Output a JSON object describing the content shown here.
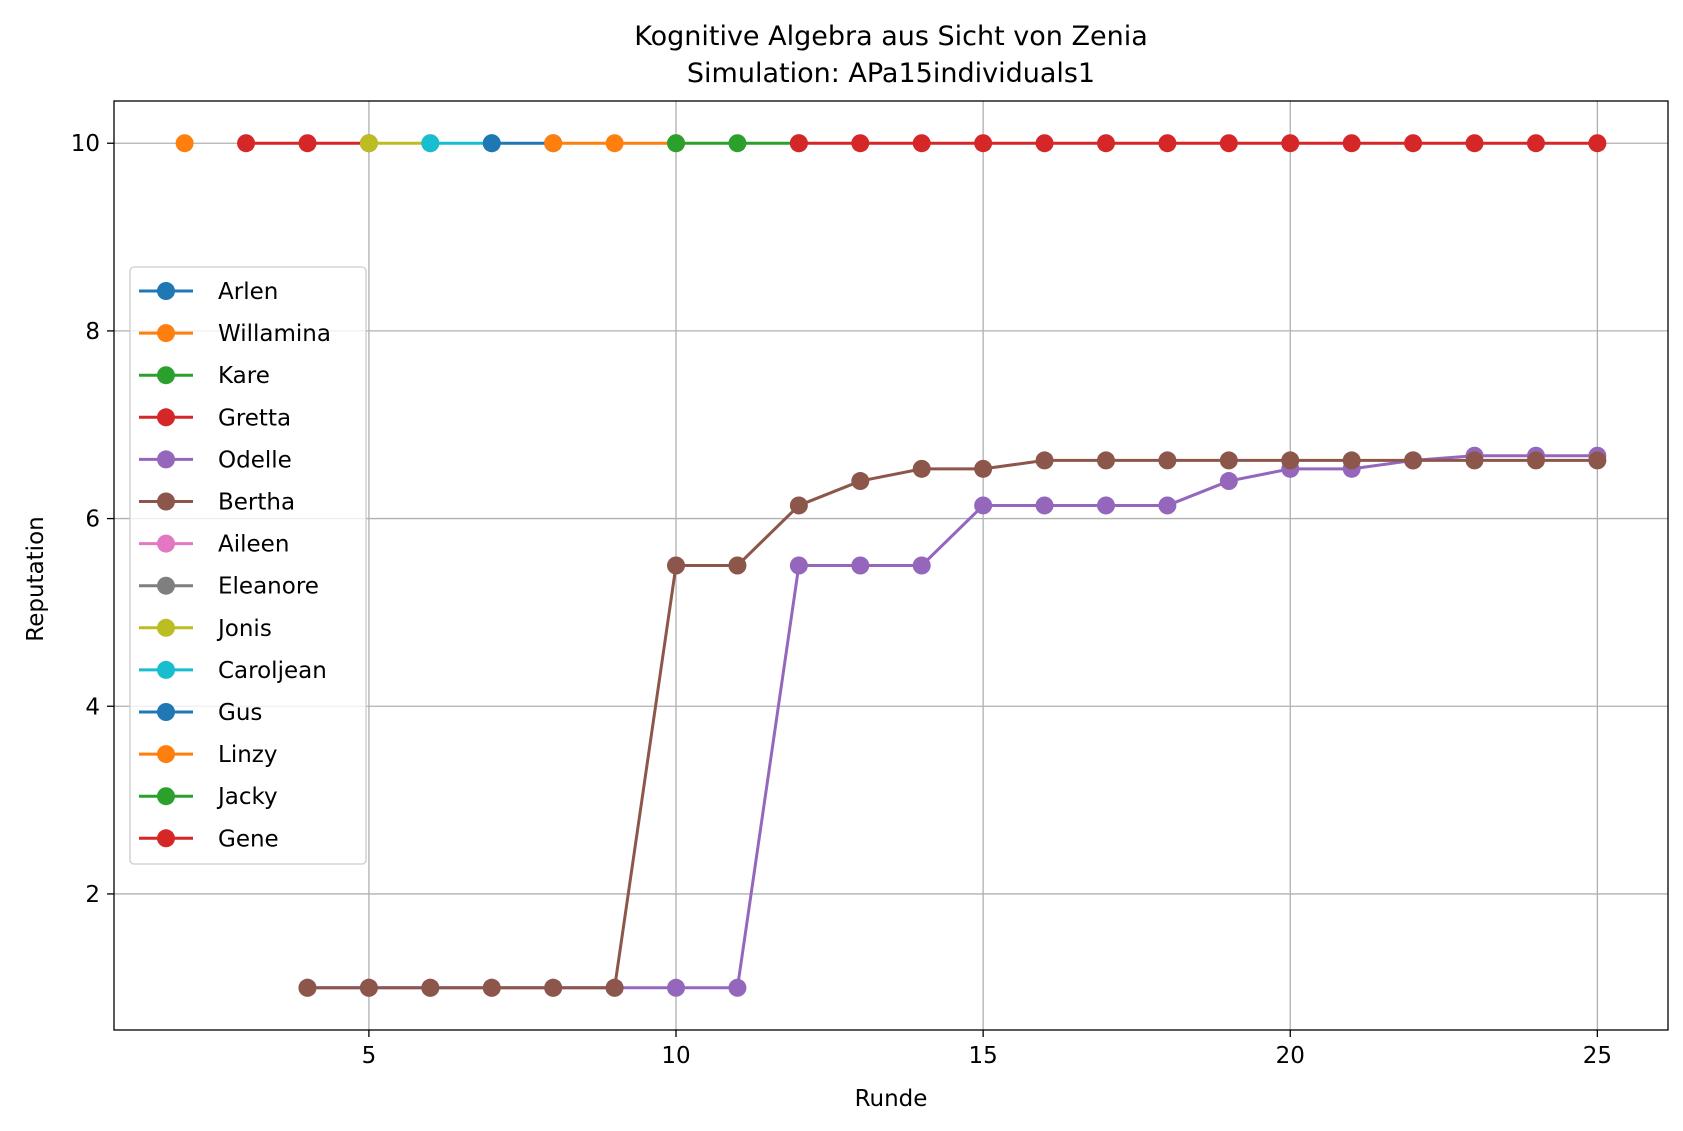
{
  "chart_data": {
    "type": "line",
    "title": "Kognitive Algebra aus Sicht von Zenia",
    "subtitle": "Simulation: APa15individuals1",
    "xlabel": "Runde",
    "ylabel": "Reputation",
    "xlim": [
      0.85,
      26.15
    ],
    "ylim": [
      0.55,
      10.45
    ],
    "xticks": [
      5,
      10,
      15,
      20,
      25
    ],
    "yticks": [
      2,
      4,
      6,
      8,
      10
    ],
    "grid": true,
    "legend_position": "center-left",
    "series": [
      {
        "name": "Arlen",
        "color": "#1f77b4",
        "x": [],
        "y": []
      },
      {
        "name": "Willamina",
        "color": "#ff7f0e",
        "x": [
          2
        ],
        "y": [
          10
        ]
      },
      {
        "name": "Kare",
        "color": "#2ca02c",
        "x": [],
        "y": []
      },
      {
        "name": "Gretta",
        "color": "#d62728",
        "x": [
          3,
          4,
          5
        ],
        "y": [
          10,
          10,
          10
        ]
      },
      {
        "name": "Odelle",
        "color": "#9467bd",
        "x": [
          4,
          5,
          6,
          7,
          8,
          9,
          10,
          11,
          12,
          13,
          14,
          15,
          16,
          17,
          18,
          19,
          20,
          21,
          22,
          23,
          24,
          25
        ],
        "y": [
          1,
          1,
          1,
          1,
          1,
          1,
          1,
          1,
          5.5,
          5.5,
          5.5,
          6.14,
          6.14,
          6.14,
          6.14,
          6.4,
          6.53,
          6.53,
          6.62,
          6.67,
          6.67,
          6.67
        ]
      },
      {
        "name": "Bertha",
        "color": "#8c564b",
        "x": [
          4,
          5,
          6,
          7,
          8,
          9,
          10,
          11,
          12,
          13,
          14,
          15,
          16,
          17,
          18,
          19,
          20,
          21,
          22,
          23,
          24,
          25
        ],
        "y": [
          1,
          1,
          1,
          1,
          1,
          1,
          5.5,
          5.5,
          6.14,
          6.4,
          6.53,
          6.53,
          6.62,
          6.62,
          6.62,
          6.62,
          6.62,
          6.62,
          6.62,
          6.62,
          6.62,
          6.62
        ]
      },
      {
        "name": "Aileen",
        "color": "#e377c2",
        "x": [],
        "y": []
      },
      {
        "name": "Eleanore",
        "color": "#7f7f7f",
        "x": [],
        "y": []
      },
      {
        "name": "Jonis",
        "color": "#bcbd22",
        "x": [
          5,
          6
        ],
        "y": [
          10,
          10
        ]
      },
      {
        "name": "Caroljean",
        "color": "#17becf",
        "x": [
          6,
          7
        ],
        "y": [
          10,
          10
        ]
      },
      {
        "name": "Gus",
        "color": "#1f77b4",
        "x": [
          7,
          8
        ],
        "y": [
          10,
          10
        ]
      },
      {
        "name": "Linzy",
        "color": "#ff7f0e",
        "x": [
          8,
          9,
          10
        ],
        "y": [
          10,
          10,
          10
        ]
      },
      {
        "name": "Jacky",
        "color": "#2ca02c",
        "x": [
          10,
          11,
          12
        ],
        "y": [
          10,
          10,
          10
        ]
      },
      {
        "name": "Gene",
        "color": "#d62728",
        "x": [
          12,
          13,
          14,
          15,
          16,
          17,
          18,
          19,
          20,
          21,
          22,
          23,
          24,
          25
        ],
        "y": [
          10,
          10,
          10,
          10,
          10,
          10,
          10,
          10,
          10,
          10,
          10,
          10,
          10,
          10
        ]
      }
    ]
  }
}
